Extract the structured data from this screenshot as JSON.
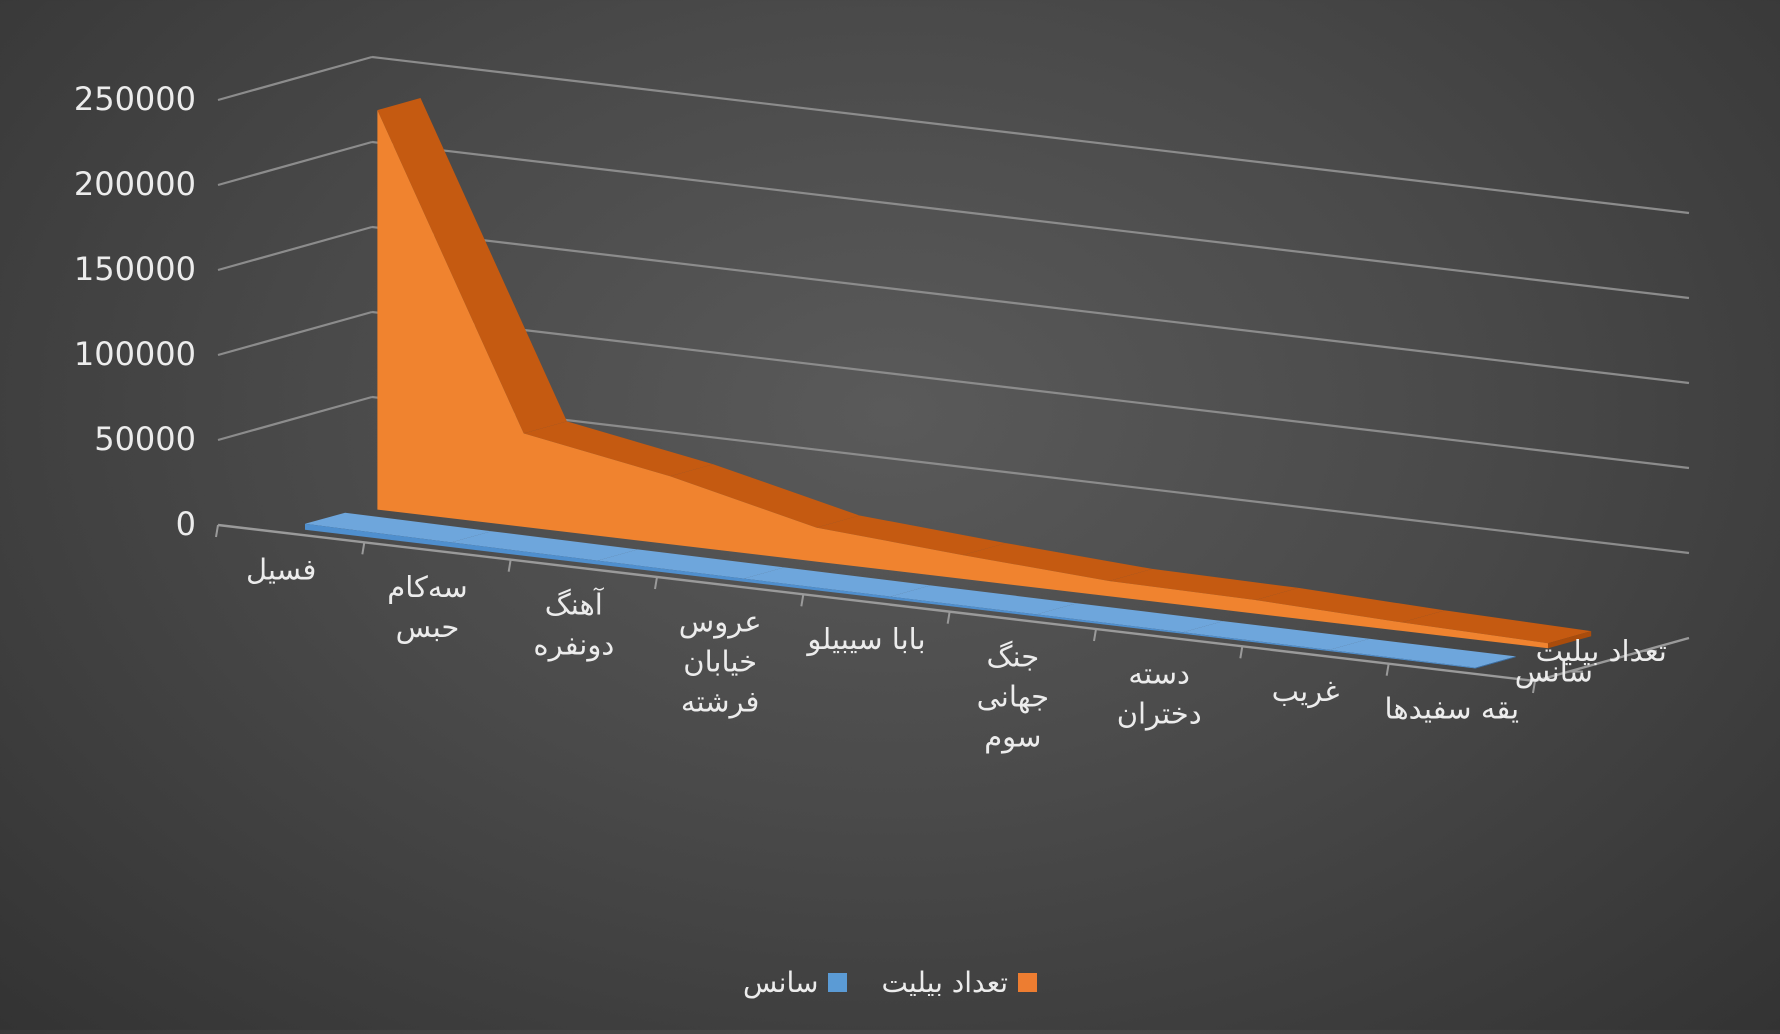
{
  "chart_data": {
    "type": "area",
    "view": "3d",
    "categories": [
      "فسیل",
      "سه‌کام حبس",
      "آهنگ دونفره",
      "عروس خیابان فرشته",
      "بابا سیبیلو",
      "جنگ جهانی سوم",
      "دسته دختران",
      "غریب",
      "یقه سفیدها"
    ],
    "category_lines": [
      [
        "فسیل"
      ],
      [
        "سه‌کام",
        "حبس"
      ],
      [
        "آهنگ",
        "دونفره"
      ],
      [
        "عروس",
        "خیابان",
        "فرشته"
      ],
      [
        "بابا سیبیلو"
      ],
      [
        "جنگ",
        "جهانی",
        "سوم"
      ],
      [
        "دسته",
        "دختران"
      ],
      [
        "غریب"
      ],
      [
        "یقه سفیدها"
      ]
    ],
    "series": [
      {
        "name": "سانس",
        "values": [
          3500,
          2800,
          2300,
          1900,
          1500,
          1200,
          900,
          700,
          500
        ]
      },
      {
        "name": "تعداد بیلیت",
        "values": [
          235000,
          55000,
          40000,
          20000,
          14000,
          9000,
          8000,
          5000,
          3000
        ]
      }
    ],
    "ylim": [
      0,
      250000
    ],
    "yticks": [
      "0",
      "50000",
      "100000",
      "150000",
      "200000",
      "250000"
    ],
    "grid": true,
    "legend_position": "bottom",
    "colors": {
      "سانس": "#5b9bd5",
      "تعداد بیلیت": "#ed7d31"
    }
  },
  "legend": {
    "series_a": "سانس",
    "series_b": "تعداد بیلیت"
  }
}
